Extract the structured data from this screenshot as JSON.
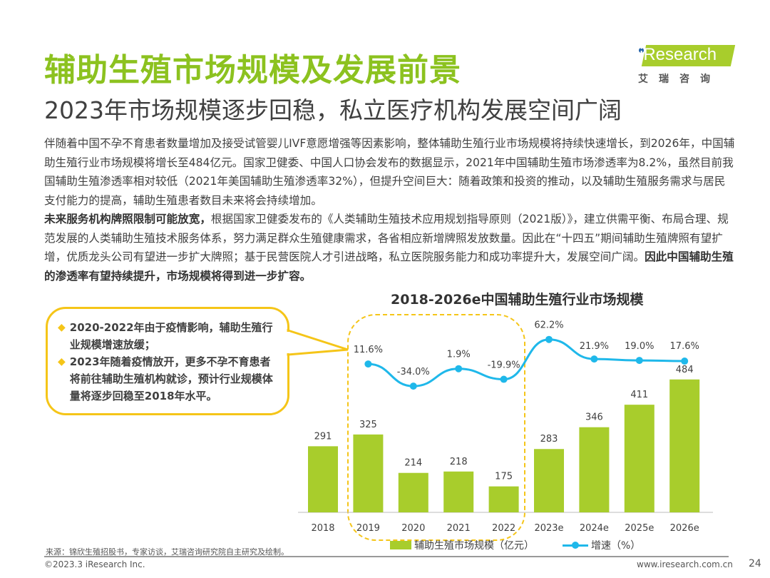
{
  "header": {
    "title": "辅助生殖市场规模及发展前景",
    "subtitle": "2023年市场规模逐步回稳，私立医疗机构发展空间广阔"
  },
  "logo": {
    "word": "iResearch",
    "cn": "艾瑞咨询"
  },
  "body": {
    "p1": "伴随着中国不孕不育患者数量增加及接受试管婴儿IVF意愿增强等因素影响，整体辅助生殖行业市场规模将持续快速增长，到2026年，中国辅助生殖行业市场规模将增长至484亿元。国家卫健委、中国人口协会发布的数据显示，2021年中国辅助生殖市场渗透率为8.2%，虽然目前我国辅助生殖渗透率相对较低（2021年美国辅助生殖渗透率32%），但提升空间巨大：随着政策和投资的推动，以及辅助生殖服务需求与居民支付能力的提高，辅助生殖患者数目未来将会持续增加。",
    "p2_bold": "未来服务机构牌照限制可能放宽，",
    "p2": "根据国家卫健委发布的《人类辅助生殖技术应用规划指导原则（2021版）》，建立供需平衡、布局合理、规范发展的人类辅助生殖技术服务体系，努力满足群众生殖健康需求，各省相应新增牌照发放数量。因此在“十四五”期间辅助生殖牌照有望扩增，优质龙头公司有望进一步扩大牌照；基于民营医院人才引进战略，私立医院服务能力和成功率提升大，发展空间广阔。",
    "p2_bold_end": "因此中国辅助生殖的渗透率有望持续提升，市场规模将得到进一步扩容。"
  },
  "callout": {
    "items": [
      "2020-2022年由于疫情影响，辅助生殖行业规模增速放缓；",
      "2023年随着疫情放开，更多不孕不育患者将前往辅助生殖机构就诊，预计行业规模体量将逐步回稳至2018年水平。"
    ]
  },
  "chart_data": {
    "type": "bar+line",
    "title": "2018-2026e中国辅助生殖行业市场规模",
    "categories": [
      "2018",
      "2019",
      "2020",
      "2021",
      "2022",
      "2023e",
      "2024e",
      "2025e",
      "2026e"
    ],
    "series": [
      {
        "name": "辅助生殖市场规模（亿元）",
        "type": "bar",
        "values": [
          291,
          325,
          214,
          218,
          175,
          283,
          346,
          411,
          484
        ],
        "color": "#a8cd2c"
      },
      {
        "name": "增速（%）",
        "type": "line",
        "values": [
          null,
          11.6,
          -34.0,
          1.9,
          -19.9,
          62.2,
          21.9,
          19.0,
          17.6
        ],
        "labels": [
          "",
          "11.6%",
          "-34.0%",
          "1.9%",
          "-19.9%",
          "62.2%",
          "21.9%",
          "19.0%",
          "17.6%"
        ],
        "color": "#1fb8ea"
      }
    ]
  },
  "footer": {
    "source": "来源：锦欣生殖招股书，专家访谈，艾瑞咨询研究院自主研究及绘制。",
    "copyright": "©2023.3 iResearch Inc.",
    "url": "www.iresearch.com.cn",
    "page": "24"
  }
}
